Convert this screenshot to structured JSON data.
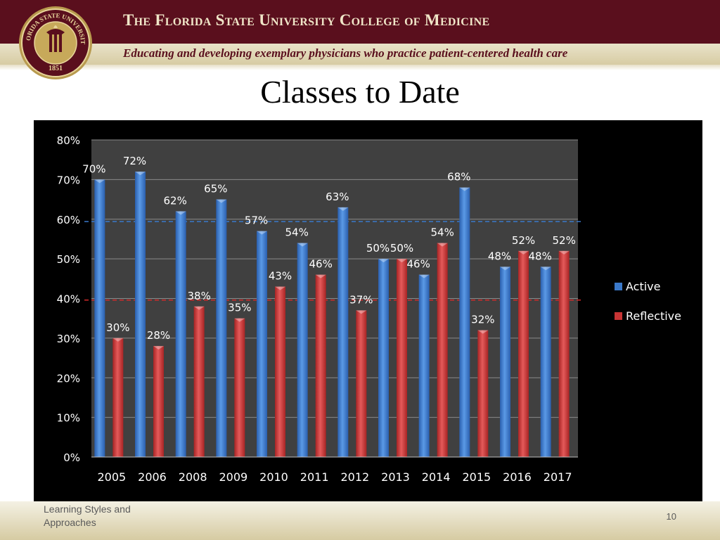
{
  "header": {
    "title": "The Florida State University College of Medicine",
    "tagline": "Educating and developing exemplary physicians who practice patient-centered health care",
    "seal": {
      "top_text": "FLORIDA STATE UNIVERSITY",
      "year": "1851"
    }
  },
  "slide": {
    "title": "Classes to Date"
  },
  "chart_data": {
    "type": "bar",
    "categories": [
      "2005",
      "2006",
      "2008",
      "2009",
      "2010",
      "2011",
      "2012",
      "2013",
      "2014",
      "2015",
      "2016",
      "2017"
    ],
    "series": [
      {
        "name": "Active",
        "values": [
          70,
          72,
          62,
          65,
          57,
          54,
          63,
          50,
          46,
          68,
          48,
          48
        ],
        "labels": [
          "70%",
          "72%",
          "62%",
          "65%",
          "57%",
          "54%",
          "63%",
          "50%",
          "46%",
          "68%",
          "48%",
          "48%"
        ],
        "color": "#3a78c9"
      },
      {
        "name": "Reflective",
        "values": [
          30,
          28,
          38,
          35,
          43,
          46,
          37,
          50,
          54,
          32,
          52,
          52
        ],
        "labels": [
          "30%",
          "28%",
          "38%",
          "35%",
          "43%",
          "46%",
          "37%",
          "50%",
          "54%",
          "32%",
          "52%",
          "52%"
        ],
        "color": "#c73434"
      }
    ],
    "yticks": [
      "0%",
      "10%",
      "20%",
      "30%",
      "40%",
      "50%",
      "60%",
      "70%",
      "80%"
    ],
    "ylim": [
      0,
      80
    ],
    "reference_lines": [
      {
        "value": 59.4,
        "color": "#3a78c9",
        "style": "dashed"
      },
      {
        "value": 39.6,
        "color": "#d22a2a",
        "style": "dashed"
      }
    ],
    "grid": true,
    "legend_position": "right",
    "background": "#000000",
    "plot_background": "#404040"
  },
  "footer": {
    "left_text": "Learning Styles and Approaches",
    "page_number": "10"
  }
}
